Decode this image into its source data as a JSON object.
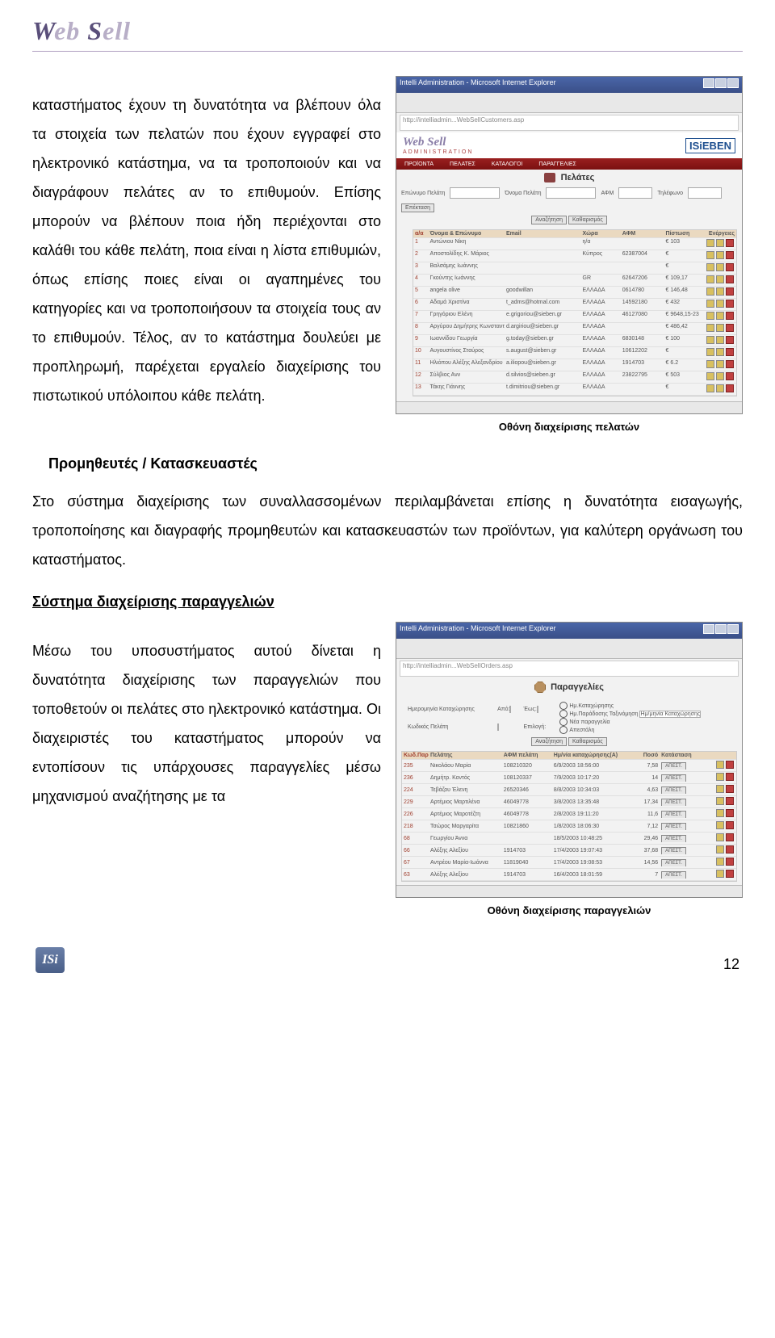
{
  "logo_text_1": "W",
  "logo_text_2": "eb",
  "logo_text_3": "S",
  "logo_text_4": "ell",
  "para1": "καταστήματος έχουν τη δυνατότητα να βλέπουν όλα τα στοιχεία των πελατών που έχουν εγγραφεί στο ηλεκτρονικό κατάστημα, να τα τροποποιούν και να διαγράφουν πελάτες αν το επιθυμούν. Επίσης μπορούν να βλέπουν ποια ήδη περιέχονται στο καλάθι του κάθε πελάτη, ποια είναι η λίστα επιθυμιών, όπως επίσης ποιες είναι οι αγαπημένες του κατηγορίες και να τροποποιήσουν τα στοιχεία τους αν το επιθυμούν. Τέλος, αν το κατάστημα δουλεύει με προπληρωμή, παρέχεται εργαλείο διαχείρισης του πιστωτικού υπόλοιπου κάθε πελάτη.",
  "caption1": "Οθόνη διαχείρισης πελατών",
  "heading1": "Προμηθευτές / Κατασκευαστές",
  "para2": "Στο σύστημα διαχείρισης των συναλλασσομένων περιλαμβάνεται επίσης η δυνατότητα εισαγωγής, τροποποίησης και διαγραφής προμηθευτών και κατασκευαστών των προϊόντων, για καλύτερη οργάνωση του καταστήματος.",
  "heading2": "Σύστημα διαχείρισης παραγγελιών",
  "para3": "Μέσω του υποσυστήματος αυτού δίνεται η δυνατότητα διαχείρισης των παραγγελιών που τοποθετούν οι πελάτες στο ηλεκτρονικό κατάστημα. Οι διαχειριστές του καταστήματος μπορούν να εντοπίσουν τις υπάρχουσες παραγγελίες μέσω μηχανισμού αναζήτησης με τα",
  "caption2": "Οθόνη διαχείρισης παραγγελιών",
  "page_number": "12",
  "footer_logo": "ISi",
  "screenshot1": {
    "title": "Intelli Administration - Microsoft Internet Explorer",
    "address": "http://intelliadmin...WebSellCustomers.asp",
    "logo": "Web Sell",
    "logo_sub": "ADMINISTRATION",
    "partner": "ISiEBEN",
    "nav": [
      "ΠΡΟΪΟΝΤΑ",
      "ΠΕΛΑΤΕΣ",
      "ΚΑΤΑΛΟΓΟΙ",
      "ΠΑΡΑΓΓΕΛΙΕΣ"
    ],
    "section_title": "Πελάτες",
    "filters": {
      "f1": "Επώνυμο Πελάτη",
      "f2": "Όνομα Πελάτη",
      "f3": "ΑΦΜ",
      "f4": "Τηλέφωνο",
      "btn_extend": "Επέκταση",
      "btn_search": "Αναζήτηση",
      "btn_clear": "Καθαρισμός"
    },
    "columns": [
      "α/α",
      "Όνομα & Επώνυμο",
      "Email",
      "Χώρα",
      "ΑΦΜ",
      "Πίστωση",
      "Ενέργειες"
    ],
    "rows": [
      {
        "i": "1",
        "name": "Αντώνιου Νίκη",
        "email": "",
        "ctry": "η/α",
        "afm": "",
        "cred": "€ 103"
      },
      {
        "i": "2",
        "name": "Αποστολίδης Κ. Μάριος",
        "email": "",
        "ctry": "Κύπρος",
        "afm": "62387004",
        "cred": "€"
      },
      {
        "i": "3",
        "name": "Βαλσάμης Ιωάννης",
        "email": "",
        "ctry": "",
        "afm": "",
        "cred": "€"
      },
      {
        "i": "4",
        "name": "Γκούντης Ιωάννης",
        "email": "",
        "ctry": "GR",
        "afm": "62647206",
        "cred": "€ 109,17"
      },
      {
        "i": "5",
        "name": "angela olive",
        "email": "goodwillan",
        "ctry": "ΕΛΛΑΔΑ",
        "afm": "0614780",
        "cred": "€ 146,48"
      },
      {
        "i": "6",
        "name": "Αδαμά Χριστίνα",
        "email": "t_adms@hotmal.com",
        "ctry": "ΕΛΛΑΔΑ",
        "afm": "14592180",
        "cred": "€ 432"
      },
      {
        "i": "7",
        "name": "Γρηγόριου Ελένη",
        "email": "e.grigoriou@sieben.gr",
        "ctry": "ΕΛΛΑΔΑ",
        "afm": "46127080",
        "cred": "€ 9648,15-23"
      },
      {
        "i": "8",
        "name": "Αργύρου Δημήτρης Κωνσταντίνος",
        "email": "d.argiriou@sieben.gr",
        "ctry": "ΕΛΛΑΔΑ",
        "afm": "",
        "cred": "€ 486,42"
      },
      {
        "i": "9",
        "name": "Ιωαννίδου Γεωργία",
        "email": "g.today@sieben.gr",
        "ctry": "ΕΛΛΑΔΑ",
        "afm": "6830148",
        "cred": "€ 100"
      },
      {
        "i": "10",
        "name": "Αυγουστίνος Σταύρος",
        "email": "s.august@sieben.gr",
        "ctry": "ΕΛΛΑΔΑ",
        "afm": "10612202",
        "cred": "€"
      },
      {
        "i": "11",
        "name": "Ηλιόπου Αλέξης Αλεξανδρίου",
        "email": "a.iliopou@sieben.gr",
        "ctry": "ΕΛΛΑΔΑ",
        "afm": "1914703",
        "cred": "€ 6.2"
      },
      {
        "i": "12",
        "name": "Σύλβιος Ανν",
        "email": "d.silvios@sieben.gr",
        "ctry": "ΕΛΛΑΔΑ",
        "afm": "23822795",
        "cred": "€ 503"
      },
      {
        "i": "13",
        "name": "Τάκης Γιάννης",
        "email": "t.dimitriou@sieben.gr",
        "ctry": "ΕΛΛΑΔΑ",
        "afm": "",
        "cred": "€"
      }
    ]
  },
  "screenshot2": {
    "title": "Intelli Administration - Microsoft Internet Explorer",
    "address": "http://intelliadmin...WebSellOrders.asp",
    "section_icon": "☰",
    "section_title": "Παραγγελίες",
    "filters": {
      "l_date": "Ημερομηνία Καταχώρησης",
      "l_from": "Από:",
      "l_to": "Έως:",
      "l_code": "Κωδικός Πελάτη",
      "l_customer": "Επιλογή:",
      "l_customer_all": "Κατάσταση",
      "l_status": "Ταξινόμηση",
      "status_opts": [
        "Ημ.Καταχώρησης",
        "Ημ.Παράδοσης",
        "Νέα παραγγελία",
        "Απεστάλη"
      ],
      "sort_field": "Ημ/μηνία Καταχώρησης",
      "btn_search": "Αναζήτηση",
      "btn_clear": "Καθαρισμός"
    },
    "columns": [
      "Κωδ.Παραγ.",
      "Πελάτης",
      "ΑΦΜ πελάτη",
      "Ημ/νία καταχώρησης(Α)",
      "Ποσό",
      "Κατάσταση",
      ""
    ],
    "rows": [
      {
        "id": "235",
        "cust": "Νικολάου Μαρία",
        "afm": "108210320",
        "date": "6/9/2003 18:56:00",
        "amt": "7,58",
        "stat": "ΑΠΕΣΤ."
      },
      {
        "id": "236",
        "cust": "Δημήτρ. Κοντός",
        "afm": "108120337",
        "date": "7/9/2003 10:17:20",
        "amt": "14",
        "stat": "ΑΠΕΣΤ."
      },
      {
        "id": "224",
        "cust": "Τεβάζου Έλενη",
        "afm": "26520346",
        "date": "8/8/2003 10:34:03",
        "amt": "4,63",
        "stat": "ΑΠΕΣΤ."
      },
      {
        "id": "229",
        "cust": "Αρτέμιος Μαρτιλένα",
        "afm": "46049778",
        "date": "3/8/2003 13:35:48",
        "amt": "17,34",
        "stat": "ΑΠΕΣΤ."
      },
      {
        "id": "226",
        "cust": "Αρτέμιος Μαροτέζτη",
        "afm": "46049778",
        "date": "2/8/2003 19:11:20",
        "amt": "11,6",
        "stat": "ΑΠΕΣΤ."
      },
      {
        "id": "218",
        "cust": "Τσώρος Μαργαρίτα",
        "afm": "10821860",
        "date": "1/8/2003 18:06:30",
        "amt": "7,12",
        "stat": "ΑΠΕΣΤ."
      },
      {
        "id": "68",
        "cust": "Γεωργίου Άννα",
        "afm": "",
        "date": "18/5/2003 10:48:25",
        "amt": "29,46",
        "stat": "ΑΠΕΣΤ."
      },
      {
        "id": "66",
        "cust": "Αλέξης Αλεξίου",
        "afm": "1914703",
        "date": "17/4/2003 19:07:43",
        "amt": "37,68",
        "stat": "ΑΠΕΣΤ."
      },
      {
        "id": "67",
        "cust": "Αντρέου Μαρία-Ιωάννα",
        "afm": "11819040",
        "date": "17/4/2003 19:08:53",
        "amt": "14,56",
        "stat": "ΑΠΕΣΤ."
      },
      {
        "id": "63",
        "cust": "Αλέξης Αλεξίου",
        "afm": "1914703",
        "date": "16/4/2003 18:01:59",
        "amt": "7",
        "stat": "ΑΠΕΣΤ."
      }
    ]
  }
}
